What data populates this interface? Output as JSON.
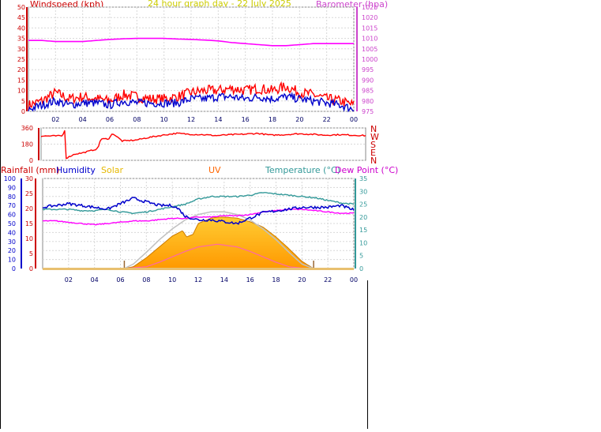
{
  "title": "24 hour graph day - 22 July 2025",
  "chart_data": [
    {
      "type": "line",
      "left_label": "Windspeed (kph)",
      "right_label": "Barometer (hpa)",
      "ylim_left": [
        0,
        50
      ],
      "left_ticks": [
        "0",
        "5",
        "10",
        "15",
        "20",
        "25",
        "30",
        "35",
        "40",
        "45",
        "50"
      ],
      "ylim_right": [
        975,
        1025
      ],
      "right_ticks": [
        "975",
        "980",
        "985",
        "990",
        "995",
        "1000",
        "1005",
        "1010",
        "1015",
        "1020",
        "1025"
      ],
      "x_ticks": [
        "02",
        "04",
        "06",
        "08",
        "10",
        "12",
        "14",
        "16",
        "18",
        "20",
        "22",
        "00"
      ],
      "x_range_hours": [
        0,
        24
      ],
      "series": [
        {
          "key": "gust",
          "color": "#ff0000",
          "x": [
            0,
            1,
            2,
            3,
            4,
            5,
            6,
            7,
            8,
            9,
            10,
            11,
            12,
            13,
            14,
            15,
            16,
            17,
            18,
            19,
            20,
            21,
            22,
            23,
            24
          ],
          "values": [
            3,
            5,
            9,
            6,
            7,
            6,
            5,
            8,
            7,
            6,
            6,
            7,
            9,
            10,
            10,
            11,
            10,
            11,
            10,
            12,
            9,
            8,
            6,
            5,
            3
          ]
        },
        {
          "key": "average",
          "color": "#0000cc",
          "x": [
            0,
            1,
            2,
            3,
            4,
            5,
            6,
            7,
            8,
            9,
            10,
            11,
            12,
            13,
            14,
            15,
            16,
            17,
            18,
            19,
            20,
            21,
            22,
            23,
            24
          ],
          "values": [
            1,
            3,
            5,
            3,
            4,
            4,
            3,
            5,
            4,
            4,
            4,
            4,
            6,
            6,
            7,
            7,
            6,
            7,
            6,
            7,
            6,
            5,
            4,
            3,
            1
          ]
        },
        {
          "key": "barometer",
          "color": "#ff00ff",
          "x": [
            0,
            1,
            2,
            3,
            4,
            5,
            6,
            7,
            8,
            9,
            10,
            11,
            12,
            13,
            14,
            15,
            16,
            17,
            18,
            19,
            20,
            21,
            22,
            23,
            24
          ],
          "values": [
            1009,
            1009,
            1008.5,
            1008.5,
            1008.5,
            1009,
            1009.5,
            1009.8,
            1010,
            1010,
            1010,
            1009.7,
            1009.5,
            1009.2,
            1008.8,
            1008,
            1007.5,
            1007,
            1006.5,
            1006.5,
            1007,
            1007.5,
            1007.5,
            1007.5,
            1007.5
          ]
        }
      ]
    },
    {
      "type": "line",
      "ylim": [
        0,
        360
      ],
      "y_ticks": [
        "0",
        "180",
        "360"
      ],
      "compass_labels": [
        "N",
        "W",
        "S",
        "E",
        "N"
      ],
      "x_range_hours": [
        0,
        24
      ],
      "series": [
        {
          "key": "direction",
          "color": "#ff0000",
          "x": [
            0,
            1.6,
            1.75,
            1.8,
            2.5,
            3.0,
            3.5,
            4.2,
            4.4,
            5.0,
            5.3,
            6.0,
            7.0,
            8.0,
            9.0,
            10.0,
            11.0,
            12.0,
            13.0,
            14.0,
            15.0,
            16.0,
            17.0,
            18.0,
            19.0,
            20.0,
            21.0,
            22.0,
            23.0,
            24.0
          ],
          "values": [
            270,
            272,
            340,
            20,
            70,
            80,
            100,
            130,
            235,
            240,
            300,
            215,
            225,
            255,
            280,
            300,
            290,
            285,
            275,
            285,
            290,
            300,
            280,
            285,
            295,
            290,
            280,
            285,
            280,
            275
          ]
        }
      ]
    },
    {
      "type": "line",
      "left_labels": [
        "Rainfall (mm)",
        "Humidity",
        "Solar",
        "UV"
      ],
      "right_labels": [
        "Temperature (°C)",
        "Dew Point (°C)"
      ],
      "humidity_ticks": [
        "0",
        "10",
        "20",
        "30",
        "40",
        "50",
        "60",
        "70",
        "80",
        "90",
        "100"
      ],
      "rain_ticks": [
        "0",
        "5",
        "10",
        "15",
        "20",
        "25",
        "30"
      ],
      "temp_ticks": [
        "0",
        "5",
        "10",
        "15",
        "20",
        "25",
        "30",
        "35"
      ],
      "x_ticks": [
        "02",
        "04",
        "06",
        "08",
        "10",
        "12",
        "14",
        "16",
        "18",
        "20",
        "22",
        "00"
      ],
      "x_range_hours": [
        0,
        24
      ],
      "sun_markers_hours": [
        6.3,
        20.9
      ],
      "series": [
        {
          "key": "humidity",
          "color": "#0000cc",
          "scale": "humidity",
          "x": [
            0,
            1,
            2,
            3,
            4,
            5,
            6,
            7,
            8,
            9,
            10,
            10.5,
            11,
            12,
            13,
            14,
            15,
            16,
            17,
            18,
            19,
            20,
            21,
            22,
            23,
            24
          ],
          "values": [
            68,
            70,
            72,
            70,
            68,
            66,
            72,
            78,
            74,
            70,
            70,
            66,
            58,
            54,
            54,
            52,
            50,
            56,
            62,
            64,
            66,
            68,
            68,
            68,
            70,
            65
          ]
        },
        {
          "key": "temperature",
          "color": "#339999",
          "scale": "temp",
          "x": [
            0,
            1,
            2,
            3,
            4,
            5,
            6,
            7,
            8,
            9,
            10,
            11,
            12,
            13,
            14,
            15,
            16,
            17,
            18,
            19,
            20,
            21,
            22,
            23,
            24
          ],
          "values": [
            23,
            23,
            23,
            22.5,
            22.5,
            23,
            22,
            21.5,
            22,
            23,
            24,
            25,
            27,
            28,
            28,
            28,
            28.5,
            29.5,
            29,
            28.5,
            28,
            27.5,
            26.5,
            25.5,
            25
          ]
        },
        {
          "key": "dewpoint",
          "color": "#ff00ff",
          "scale": "temp",
          "x": [
            0,
            1,
            2,
            3,
            4,
            5,
            6,
            7,
            8,
            9,
            10,
            11,
            12,
            13,
            14,
            15,
            16,
            17,
            18,
            19,
            20,
            21,
            22,
            23,
            24
          ],
          "values": [
            18.5,
            18.5,
            18,
            17.5,
            17,
            17.5,
            18,
            18.5,
            18.5,
            19,
            19.5,
            19.5,
            20,
            20,
            20.5,
            20.5,
            21,
            22,
            22.5,
            23,
            23,
            22.5,
            22,
            21.5,
            21.5
          ]
        },
        {
          "key": "solar",
          "color": "#ffaa00",
          "scale": "humidity",
          "x": [
            6.3,
            7,
            8,
            9,
            10,
            10.8,
            11.1,
            11.6,
            12,
            13,
            13.5,
            14,
            15,
            16,
            17,
            18,
            19,
            20,
            20.9
          ],
          "values": [
            0,
            2,
            12,
            24,
            36,
            42,
            35,
            38,
            50,
            56,
            57,
            57,
            56,
            52,
            46,
            35,
            22,
            8,
            0
          ]
        },
        {
          "key": "solar_max",
          "color": "#c0c0c0",
          "scale": "humidity",
          "x": [
            6.3,
            7,
            8,
            9,
            10,
            11,
            12,
            13,
            13.5,
            14,
            15,
            16,
            17,
            18,
            19,
            20,
            20.9
          ],
          "values": [
            0,
            5,
            18,
            32,
            44,
            54,
            60,
            63,
            63,
            63,
            60,
            54,
            44,
            32,
            18,
            5,
            0
          ]
        },
        {
          "key": "uv",
          "color": "#ff66aa",
          "scale": "humidity",
          "x": [
            6.3,
            8,
            9,
            10,
            11,
            12,
            13,
            13.5,
            14,
            15,
            16,
            17,
            18,
            19,
            20,
            20.9
          ],
          "values": [
            0,
            2,
            7,
            13,
            19,
            24,
            26,
            27,
            26,
            24,
            19,
            13,
            7,
            2,
            0.5,
            0
          ]
        }
      ]
    }
  ]
}
